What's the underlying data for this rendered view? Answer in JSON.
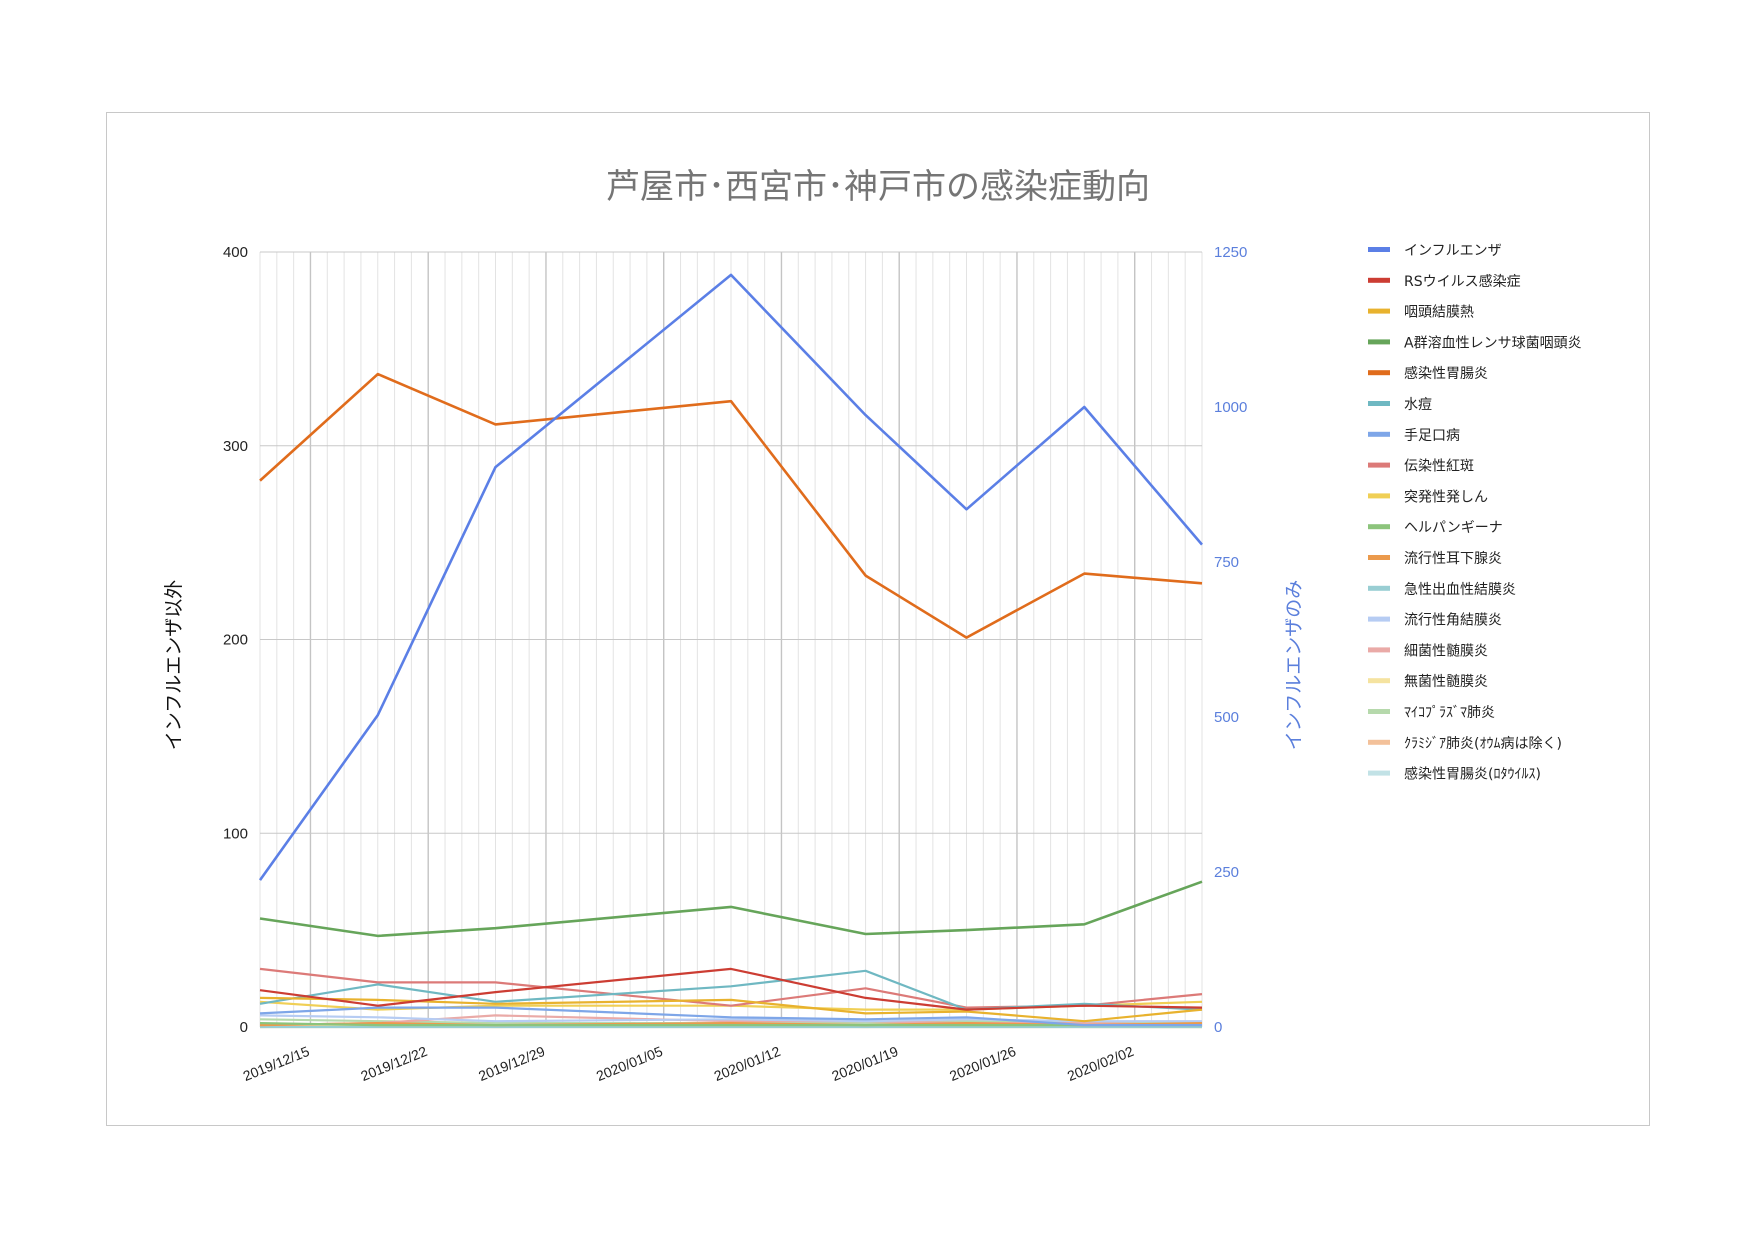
{
  "chart_data": {
    "type": "line",
    "title": "芦屋市･西宮市･神戸市の感染症動向",
    "ylabel_left": "インフルエンザ以外",
    "ylabel_right": "インフルエンザのみ",
    "ylim_left": [
      0,
      400
    ],
    "ylim_right": [
      0,
      1250
    ],
    "yticks_left": [
      "0",
      "100",
      "200",
      "300",
      "400"
    ],
    "yticks_right": [
      "0",
      "250",
      "500",
      "750",
      "1000",
      "1250"
    ],
    "x_range_days": [
      0,
      56
    ],
    "x_tick_labels": [
      "2019/12/15",
      "2019/12/22",
      "2019/12/29",
      "2020/01/05",
      "2020/01/12",
      "2020/01/19",
      "2020/01/26",
      "2020/02/02"
    ],
    "x_tick_days": [
      3,
      10,
      17,
      24,
      31,
      38,
      45,
      52
    ],
    "x_points_days": [
      0,
      7,
      14,
      28,
      36,
      42,
      49,
      56
    ],
    "legend_position": "right",
    "grid": true,
    "series": [
      {
        "name": "インフルエンザ",
        "axis": "right",
        "color": "#5b7fe6",
        "values": [
          237,
          503,
          903,
          1213,
          987,
          835,
          1000,
          778
        ]
      },
      {
        "name": "RSウイルス感染症",
        "axis": "left",
        "color": "#cc3d33",
        "values": [
          19,
          11,
          18,
          30,
          15,
          9,
          11,
          10
        ]
      },
      {
        "name": "咽頭結膜熱",
        "axis": "left",
        "color": "#e8b22e",
        "values": [
          15,
          14,
          12,
          14,
          7,
          8,
          3,
          9
        ]
      },
      {
        "name": "A群溶血性レンサ球菌咽頭炎",
        "axis": "left",
        "color": "#66a55a",
        "values": [
          56,
          47,
          51,
          62,
          48,
          50,
          53,
          75
        ]
      },
      {
        "name": "感染性胃腸炎",
        "axis": "left",
        "color": "#e06c1c",
        "values": [
          282,
          337,
          311,
          323,
          233,
          201,
          234,
          229
        ]
      },
      {
        "name": "水痘",
        "axis": "left",
        "color": "#6fb8c2",
        "values": [
          12,
          22,
          13,
          21,
          29,
          9,
          12,
          9
        ]
      },
      {
        "name": "手足口病",
        "axis": "left",
        "color": "#7ea6e8",
        "values": [
          7,
          10,
          10,
          5,
          4,
          5,
          1,
          1
        ]
      },
      {
        "name": "伝染性紅斑",
        "axis": "left",
        "color": "#dc7a78",
        "values": [
          30,
          23,
          23,
          11,
          20,
          10,
          11,
          17
        ]
      },
      {
        "name": "突発性発しん",
        "axis": "left",
        "color": "#f0cf55",
        "values": [
          13,
          9,
          11,
          11,
          9,
          9,
          11,
          13
        ]
      },
      {
        "name": "ヘルパンギーナ",
        "axis": "left",
        "color": "#8cc47c",
        "values": [
          2,
          1,
          1,
          1,
          1,
          1,
          1,
          1
        ]
      },
      {
        "name": "流行性耳下腺炎",
        "axis": "left",
        "color": "#eb9a4c",
        "values": [
          1,
          2,
          1,
          2,
          1,
          2,
          1,
          2
        ]
      },
      {
        "name": "急性出血性結膜炎",
        "axis": "left",
        "color": "#99ced3",
        "values": [
          0,
          0,
          0,
          0,
          0,
          0,
          0,
          0
        ]
      },
      {
        "name": "流行性角結膜炎",
        "axis": "left",
        "color": "#b6ccf3",
        "values": [
          6,
          5,
          3,
          4,
          3,
          4,
          3,
          3
        ]
      },
      {
        "name": "細菌性髄膜炎",
        "axis": "left",
        "color": "#eaaaa7",
        "values": [
          1,
          2,
          6,
          3,
          3,
          2,
          2,
          1
        ]
      },
      {
        "name": "無菌性髄膜炎",
        "axis": "left",
        "color": "#f5e3a0",
        "values": [
          0,
          1,
          0,
          1,
          0,
          1,
          0,
          0
        ]
      },
      {
        "name": "ﾏｲｺﾌﾟﾗｽﾞﾏ肺炎",
        "axis": "left",
        "color": "#b6d9ac",
        "values": [
          4,
          3,
          2,
          2,
          2,
          3,
          2,
          2
        ]
      },
      {
        "name": "ｸﾗﾐｼﾞｱ肺炎(ｵｳﾑ病は除く)",
        "axis": "left",
        "color": "#f3c19a",
        "values": [
          0,
          0,
          0,
          0,
          0,
          0,
          0,
          0
        ]
      },
      {
        "name": "感染性胃腸炎(ﾛﾀｳｲﾙｽ)",
        "axis": "left",
        "color": "#c2e2e6",
        "values": [
          1,
          2,
          1,
          1,
          1,
          2,
          2,
          1
        ]
      }
    ]
  }
}
